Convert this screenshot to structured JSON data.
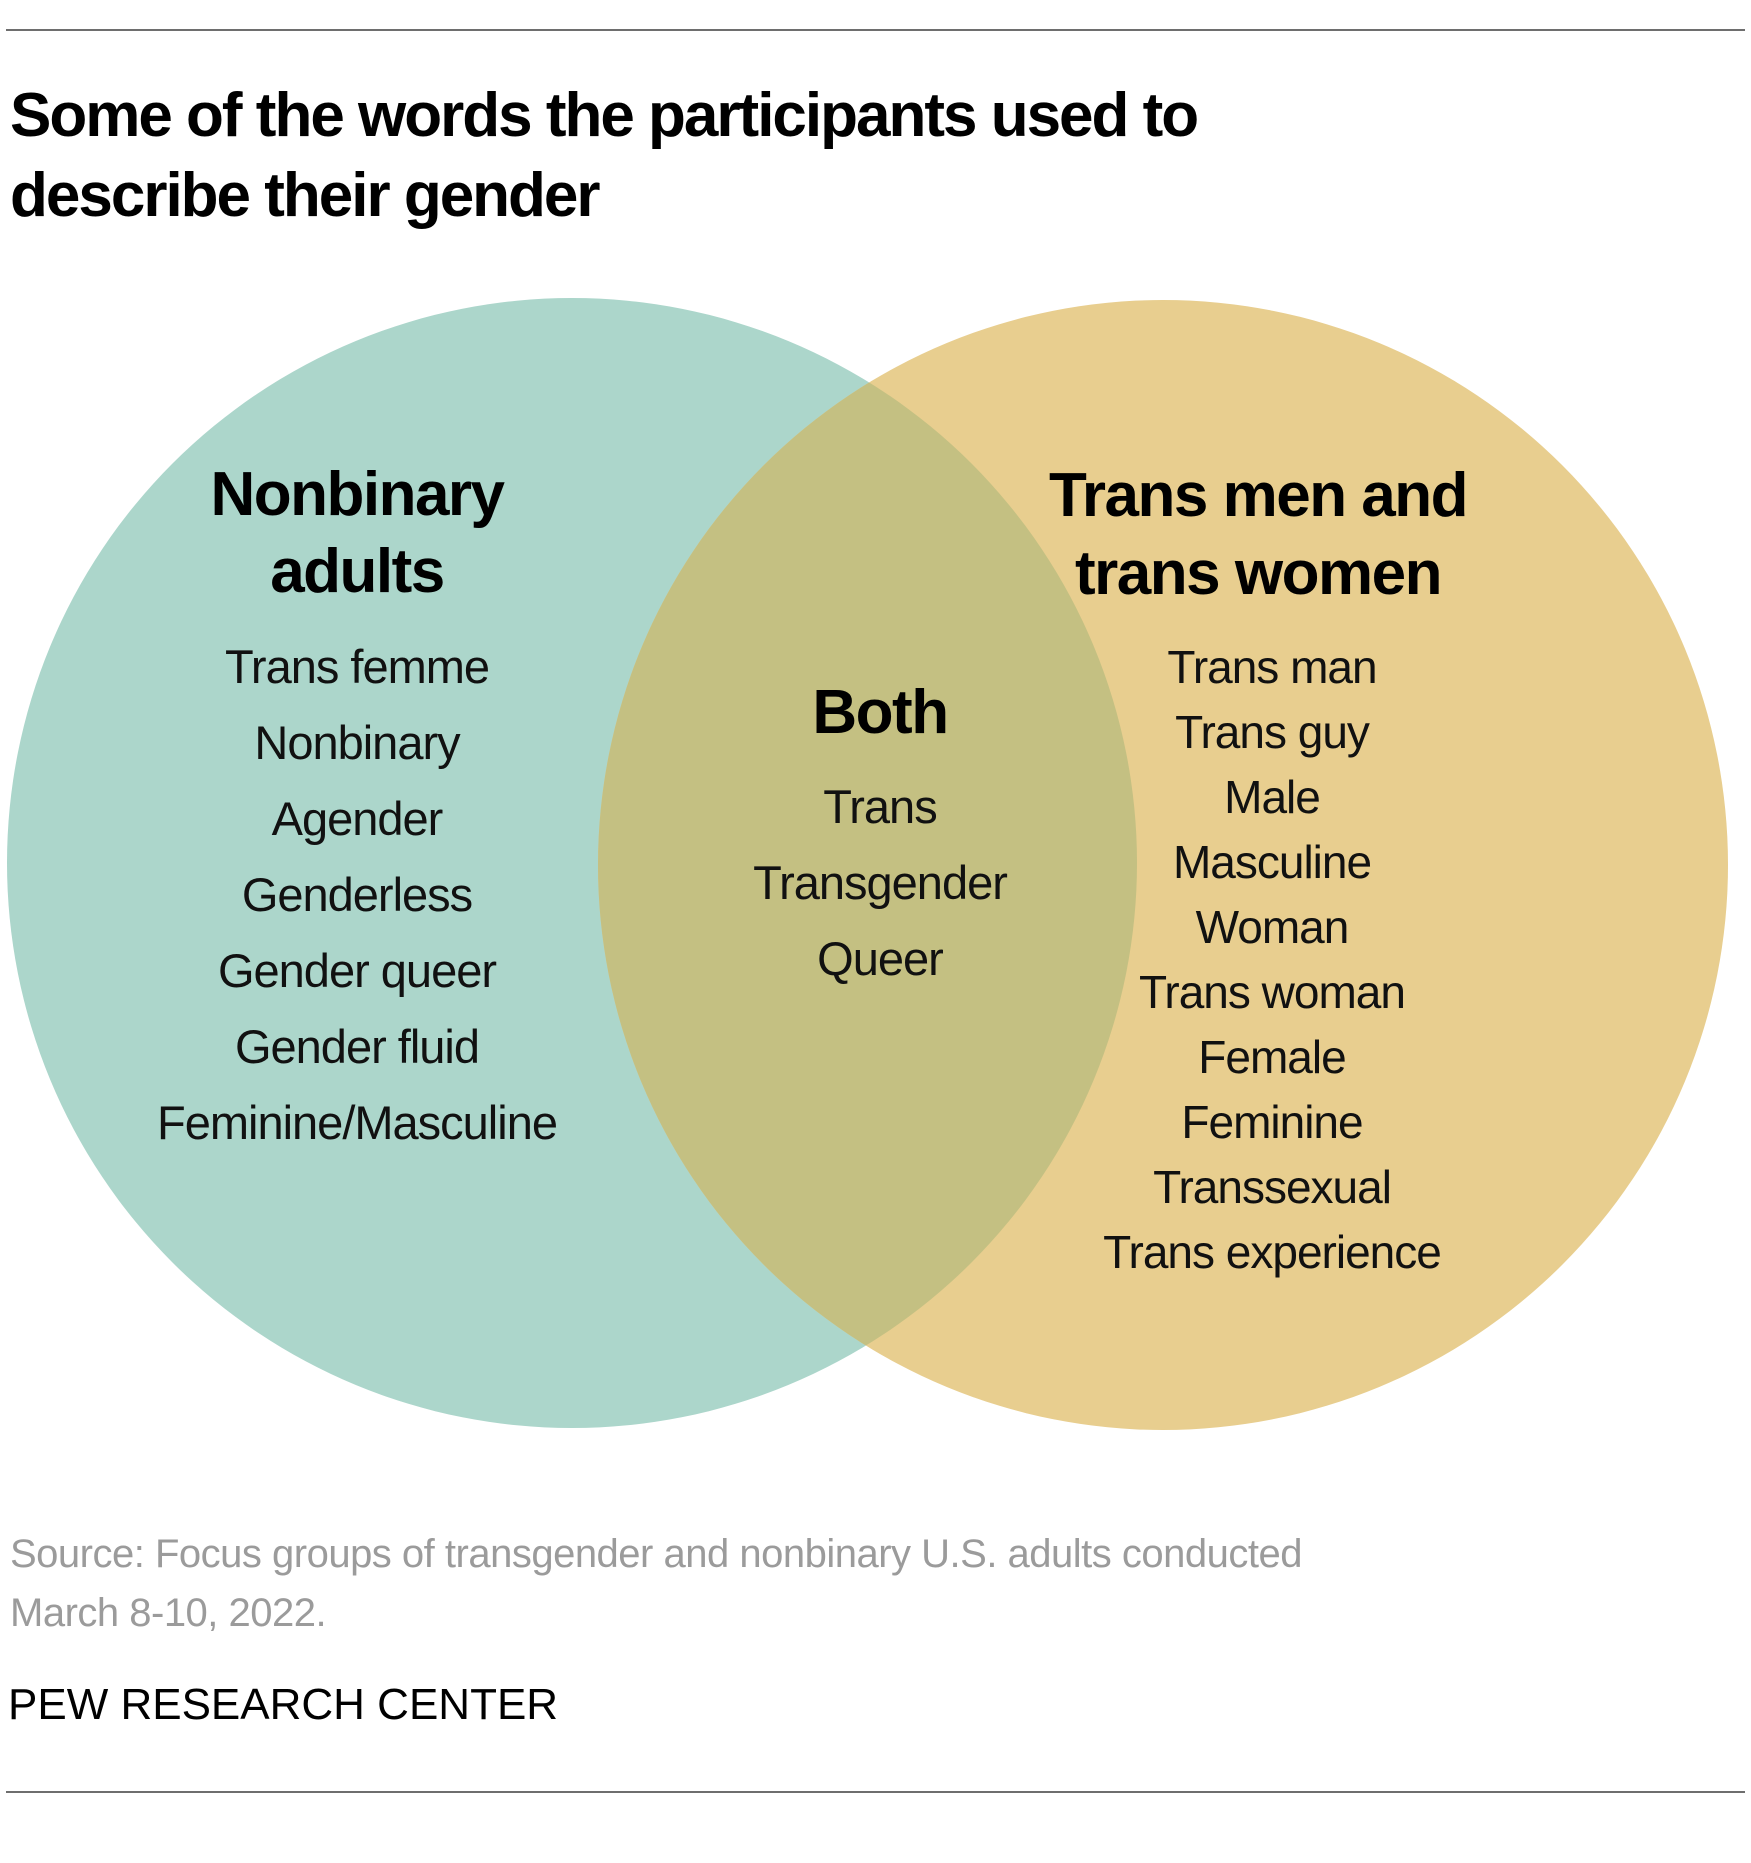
{
  "header": {
    "title": "Some of the words the participants used to describe their gender"
  },
  "diagram": {
    "type": "venn",
    "left": {
      "heading": "Nonbinary adults",
      "words": [
        "Trans femme",
        "Nonbinary",
        "Agender",
        "Genderless",
        "Gender queer",
        "Gender fluid",
        "Feminine/Masculine"
      ]
    },
    "overlap": {
      "heading": "Both",
      "words": [
        "Trans",
        "Transgender",
        "Queer"
      ]
    },
    "right": {
      "heading": "Trans men and trans women",
      "words": [
        "Trans man",
        "Trans guy",
        "Male",
        "Masculine",
        "Woman",
        "Trans woman",
        "Female",
        "Feminine",
        "Transsexual",
        "Trans experience"
      ]
    },
    "colors": {
      "left_circle": "#acd6cb",
      "right_circle": "#e8ce8f",
      "overlap": "#c4c082",
      "text": "#111111"
    }
  },
  "footer": {
    "source": "Source: Focus groups of transgender and nonbinary U.S. adults conducted March 8-10, 2022.",
    "brand": "PEW RESEARCH CENTER"
  }
}
